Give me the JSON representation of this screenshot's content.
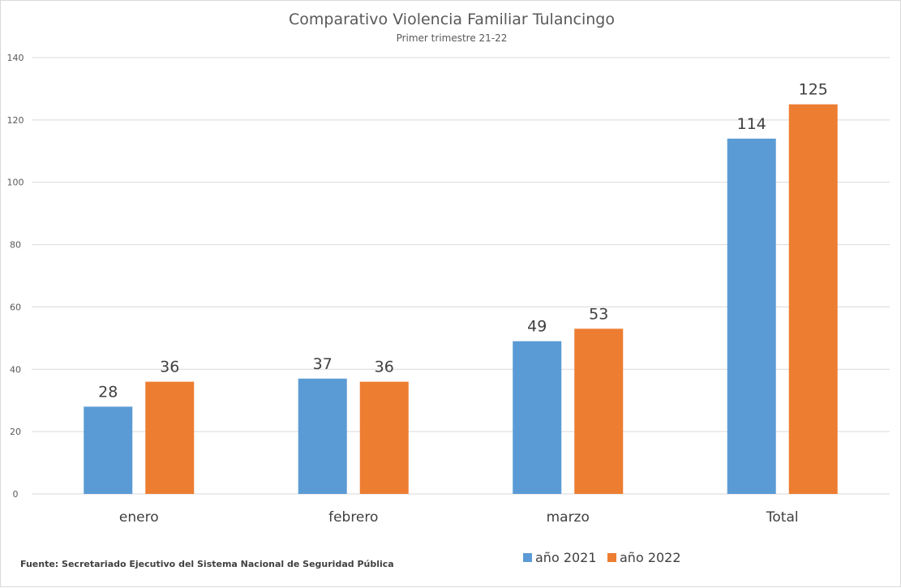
{
  "chart_data": {
    "type": "bar",
    "title": "Comparativo Violencia Familiar Tulancingo",
    "subtitle": "Primer trimestre 21-22",
    "categories": [
      "enero",
      "febrero",
      "marzo",
      "Total"
    ],
    "series": [
      {
        "name": "año 2021",
        "values": [
          28,
          37,
          49,
          114
        ],
        "color": "#5b9bd5"
      },
      {
        "name": "año 2022",
        "values": [
          36,
          36,
          53,
          125
        ],
        "color": "#ed7d31"
      }
    ],
    "ylim": [
      0,
      140
    ],
    "yticks": [
      0,
      20,
      40,
      60,
      80,
      100,
      120,
      140
    ],
    "grid": true,
    "legend": "bottom",
    "source": "Fuente: Secretariado Ejecutivo del Sistema Nacional de Seguridad Pública"
  }
}
